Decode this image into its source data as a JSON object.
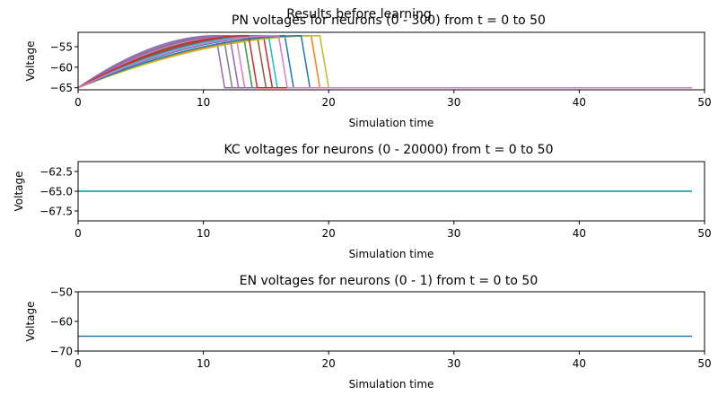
{
  "suptitle": "Results before learning",
  "chart_data": [
    {
      "type": "line",
      "title": "PN voltages for neurons (0 - 300) from t = 0 to 50",
      "xlabel": "Simulation time",
      "ylabel": "Voltage",
      "xlim": [
        0,
        50
      ],
      "ylim": [
        -65.5,
        -51.5
      ],
      "xticks": [
        "0",
        "10",
        "20",
        "30",
        "40",
        "50"
      ],
      "yticks": [
        "−55",
        "−60",
        "−65"
      ],
      "ytick_values": [
        -55,
        -60,
        -65
      ],
      "grid": false,
      "series": [
        {
          "color": "#1f77b4",
          "x": [
            0,
            16.5,
            17.2,
            49
          ],
          "y": [
            -65,
            -52.3,
            -65,
            -65
          ]
        },
        {
          "color": "#ff7f0e",
          "x": [
            0,
            18.6,
            19.3,
            49
          ],
          "y": [
            -65,
            -52.3,
            -65,
            -65
          ]
        },
        {
          "color": "#2ca02c",
          "x": [
            0,
            13.2,
            13.9,
            49
          ],
          "y": [
            -65,
            -52.3,
            -65,
            -65
          ]
        },
        {
          "color": "#d62728",
          "x": [
            0,
            14.8,
            15.5,
            49
          ],
          "y": [
            -65,
            -52.3,
            -65,
            -65
          ]
        },
        {
          "color": "#9467bd",
          "x": [
            0,
            11.0,
            11.7,
            49
          ],
          "y": [
            -65,
            -52.3,
            -65,
            -65
          ]
        },
        {
          "color": "#8c564b",
          "x": [
            0,
            14.3,
            15.0,
            49
          ],
          "y": [
            -65,
            -52.3,
            -65,
            -65
          ]
        },
        {
          "color": "#e377c2",
          "x": [
            0,
            12.6,
            13.3,
            49
          ],
          "y": [
            -65,
            -52.3,
            -65,
            -65
          ]
        },
        {
          "color": "#7f7f7f",
          "x": [
            0,
            11.6,
            12.3,
            49
          ],
          "y": [
            -65,
            -52.3,
            -65,
            -65
          ]
        },
        {
          "color": "#bcbd22",
          "x": [
            0,
            19.3,
            20.0,
            49
          ],
          "y": [
            -65,
            -52.3,
            -65,
            -65
          ]
        },
        {
          "color": "#17becf",
          "x": [
            0,
            15.2,
            15.9,
            49
          ],
          "y": [
            -65,
            -52.3,
            -65,
            -65
          ]
        },
        {
          "color": "#1f77b4",
          "x": [
            0,
            17.8,
            18.5,
            49
          ],
          "y": [
            -65,
            -52.3,
            -65,
            -65
          ]
        },
        {
          "color": "#9467bd",
          "x": [
            0,
            12.1,
            12.8,
            49
          ],
          "y": [
            -65,
            -52.3,
            -65,
            -65
          ]
        },
        {
          "color": "#d62728",
          "x": [
            0,
            13.6,
            14.3,
            49
          ],
          "y": [
            -65,
            -52.3,
            -65,
            -65
          ]
        },
        {
          "color": "#e377c2",
          "x": [
            0,
            16.0,
            16.7,
            49
          ],
          "y": [
            -65,
            -52.3,
            -65,
            -65
          ]
        }
      ]
    },
    {
      "type": "line",
      "title": "KC voltages for neurons (0 - 20000) from t = 0 to 50",
      "xlabel": "Simulation time",
      "ylabel": "Voltage",
      "xlim": [
        0,
        50
      ],
      "ylim": [
        -68.75,
        -61.25
      ],
      "xticks": [
        "0",
        "10",
        "20",
        "30",
        "40",
        "50"
      ],
      "yticks": [
        "−62.5",
        "−65.0",
        "−67.5"
      ],
      "ytick_values": [
        -62.5,
        -65.0,
        -67.5
      ],
      "grid": false,
      "series": [
        {
          "color": "#1f77b4",
          "x": [
            0,
            49
          ],
          "y": [
            -65,
            -65
          ]
        },
        {
          "color": "#7f7f7f",
          "x": [
            0,
            49
          ],
          "y": [
            -65,
            -65
          ]
        },
        {
          "color": "#17becf",
          "x": [
            0,
            49
          ],
          "y": [
            -65,
            -65
          ]
        }
      ]
    },
    {
      "type": "line",
      "title": "EN voltages for neurons (0 - 1) from t = 0 to 50",
      "xlabel": "Simulation time",
      "ylabel": "Voltage",
      "xlim": [
        0,
        50
      ],
      "ylim": [
        -70,
        -50
      ],
      "xticks": [
        "0",
        "10",
        "20",
        "30",
        "40",
        "50"
      ],
      "yticks": [
        "−50",
        "−60",
        "−70"
      ],
      "ytick_values": [
        -50,
        -60,
        -70
      ],
      "grid": false,
      "series": [
        {
          "color": "#1f77b4",
          "x": [
            0,
            49
          ],
          "y": [
            -65,
            -65
          ]
        }
      ]
    }
  ]
}
